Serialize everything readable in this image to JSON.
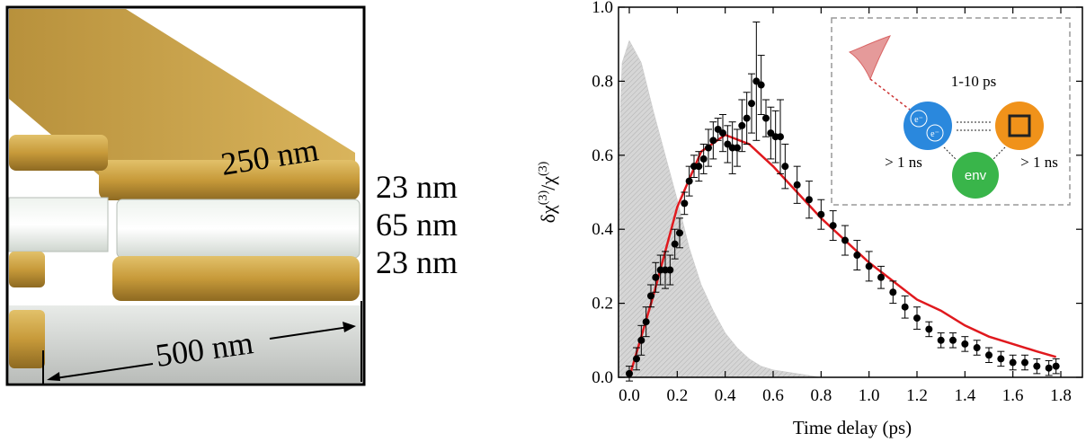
{
  "illustration": {
    "labels": [
      "250 nm",
      "23 nm",
      "65 nm",
      "23 nm",
      "500 nm"
    ]
  },
  "chart_data": {
    "type": "scatter",
    "x_label": "Time delay (ps)",
    "y_label": [
      "δχ",
      "(3)",
      "/χ",
      "(3)"
    ],
    "xlim": [
      -0.045,
      1.89
    ],
    "ylim": [
      0,
      1
    ],
    "xticks": [
      {
        "value": 0,
        "label": "0.0"
      },
      0.2,
      0.4,
      0.6,
      0.8,
      {
        "value": 1,
        "label": "1.0"
      },
      1.2,
      1.4,
      1.6,
      1.8
    ],
    "yticks": [
      {
        "value": 0,
        "label": "0.0"
      },
      0.2,
      0.4,
      0.6,
      0.8,
      {
        "value": 1,
        "label": "1.0"
      }
    ],
    "series": [
      {
        "kind": "area",
        "color": "#c8c8c8",
        "x": [
          -0.045,
          -0.03,
          0,
          0.05,
          0.1,
          0.15,
          0.2,
          0.25,
          0.3,
          0.35,
          0.4,
          0.45,
          0.5,
          0.55,
          0.6,
          0.7,
          0.8
        ],
        "values": [
          0.6,
          0.85,
          0.91,
          0.85,
          0.72,
          0.6,
          0.48,
          0.35,
          0.25,
          0.18,
          0.12,
          0.08,
          0.05,
          0.03,
          0.02,
          0.01,
          0
        ]
      },
      {
        "kind": "line",
        "color": "#e0191e",
        "x": [
          0,
          0.1,
          0.2,
          0.3,
          0.4,
          0.5,
          0.6,
          0.7,
          0.8,
          0.9,
          1,
          1.1,
          1.2,
          1.3,
          1.4,
          1.5,
          1.6,
          1.7,
          1.78
        ],
        "values": [
          0,
          0.22,
          0.46,
          0.61,
          0.655,
          0.63,
          0.57,
          0.5,
          0.43,
          0.37,
          0.31,
          0.26,
          0.21,
          0.18,
          0.14,
          0.11,
          0.09,
          0.07,
          0.055
        ]
      },
      {
        "kind": "points",
        "color": "#000000",
        "x": [
          0,
          0.03,
          0.05,
          0.07,
          0.09,
          0.11,
          0.13,
          0.15,
          0.17,
          0.19,
          0.21,
          0.23,
          0.25,
          0.27,
          0.29,
          0.31,
          0.33,
          0.35,
          0.37,
          0.39,
          0.41,
          0.43,
          0.45,
          0.47,
          0.49,
          0.51,
          0.53,
          0.55,
          0.57,
          0.59,
          0.61,
          0.63,
          0.65,
          0.7,
          0.75,
          0.8,
          0.85,
          0.9,
          0.95,
          1,
          1.05,
          1.1,
          1.15,
          1.2,
          1.25,
          1.3,
          1.35,
          1.4,
          1.45,
          1.5,
          1.55,
          1.6,
          1.65,
          1.7,
          1.75,
          1.78
        ],
        "values": [
          0.01,
          0.05,
          0.1,
          0.15,
          0.22,
          0.27,
          0.29,
          0.29,
          0.29,
          0.36,
          0.39,
          0.47,
          0.53,
          0.57,
          0.57,
          0.59,
          0.62,
          0.64,
          0.67,
          0.66,
          0.63,
          0.62,
          0.62,
          0.68,
          0.7,
          0.74,
          0.8,
          0.79,
          0.7,
          0.66,
          0.65,
          0.65,
          0.57,
          0.52,
          0.48,
          0.44,
          0.41,
          0.37,
          0.33,
          0.3,
          0.27,
          0.23,
          0.19,
          0.16,
          0.13,
          0.1,
          0.1,
          0.09,
          0.08,
          0.06,
          0.05,
          0.04,
          0.04,
          0.03,
          0.025,
          0.03
        ],
        "errors": [
          0.02,
          0.03,
          0.04,
          0.04,
          0.03,
          0.04,
          0.04,
          0.05,
          0.04,
          0.04,
          0.04,
          0.03,
          0.04,
          0.03,
          0.04,
          0.04,
          0.05,
          0.05,
          0.03,
          0.05,
          0.05,
          0.07,
          0.05,
          0.07,
          0.07,
          0.08,
          0.16,
          0.08,
          0.05,
          0.07,
          0.07,
          0.1,
          0.06,
          0.05,
          0.05,
          0.04,
          0.04,
          0.04,
          0.04,
          0.04,
          0.03,
          0.03,
          0.03,
          0.03,
          0.02,
          0.02,
          0.02,
          0.02,
          0.02,
          0.02,
          0.02,
          0.02,
          0.02,
          0.02,
          0.02,
          0.02
        ]
      }
    ],
    "inset": {
      "times": [
        "1-10 ps",
        "> 1 ns",
        "> 1 ns"
      ],
      "nodes": [
        "e⁻",
        "e⁻",
        "env"
      ]
    }
  }
}
